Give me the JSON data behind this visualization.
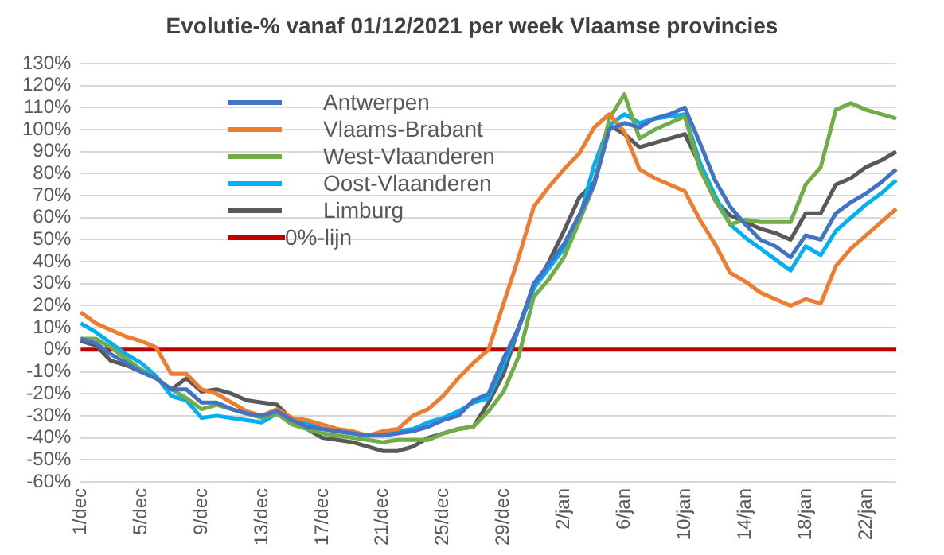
{
  "chart_data": {
    "type": "line",
    "title": "Evolutie-% vanaf 01/12/2021 per week Vlaamse provincies",
    "categories": [
      "1/dec",
      null,
      null,
      null,
      "5/dec",
      null,
      null,
      null,
      "9/dec",
      null,
      null,
      null,
      "13/dec",
      null,
      null,
      null,
      "17/dec",
      null,
      null,
      null,
      "21/dec",
      null,
      null,
      null,
      "25/dec",
      null,
      null,
      null,
      "29/dec",
      null,
      null,
      null,
      "2/jan",
      null,
      null,
      null,
      "6/jan",
      null,
      null,
      null,
      "10/jan",
      null,
      null,
      null,
      "14/jan",
      null,
      null,
      null,
      "18/jan",
      null,
      null,
      null,
      "22/jan",
      null,
      null
    ],
    "series": [
      {
        "name": "Antwerpen",
        "color": "#4472c4",
        "values": [
          5,
          3,
          -2,
          -6,
          -10,
          -13,
          -18,
          -18,
          -24,
          -24,
          -27,
          -29,
          -30,
          -28,
          -32,
          -35,
          -36,
          -37,
          -38,
          -39,
          -39,
          -38,
          -37,
          -35,
          -32,
          -30,
          -23,
          -20,
          -4,
          10,
          30,
          39,
          48,
          61,
          75,
          100,
          103,
          101,
          105,
          107,
          110,
          94,
          77,
          65,
          57,
          50,
          47,
          42,
          52,
          50,
          62,
          67,
          71,
          76,
          82
        ]
      },
      {
        "name": "Vlaams-Brabant",
        "color": "#ed7d31",
        "values": [
          17,
          12,
          9,
          6,
          4,
          1,
          -11,
          -11,
          -18,
          -20,
          -24,
          -28,
          -30,
          -27,
          -31,
          -32,
          -34,
          -36,
          -37,
          -39,
          -37,
          -36,
          -30,
          -27,
          -21,
          -13,
          -6,
          0,
          21,
          42,
          65,
          74,
          82,
          89,
          101,
          107,
          99,
          82,
          78,
          75,
          72,
          59,
          48,
          35,
          31,
          26,
          23,
          20,
          23,
          21,
          38,
          46,
          52,
          58,
          64
        ]
      },
      {
        "name": "West-Vlaanderen",
        "color": "#70ad47",
        "values": [
          5,
          5,
          1,
          -4,
          -9,
          -13,
          -18,
          -22,
          -27,
          -25,
          -27,
          -29,
          -31,
          -29,
          -34,
          -36,
          -38,
          -39,
          -40,
          -41,
          -42,
          -41,
          -41,
          -41,
          -38,
          -36,
          -35,
          -28,
          -19,
          -3,
          24,
          32,
          42,
          58,
          75,
          105,
          116,
          96,
          100,
          103,
          106,
          82,
          68,
          57,
          59,
          58,
          58,
          58,
          75,
          83,
          109,
          112,
          109,
          107,
          105
        ]
      },
      {
        "name": "Oost-Vlaanderen",
        "color": "#00b0f0",
        "values": [
          12,
          8,
          3,
          -2,
          -6,
          -12,
          -21,
          -23,
          -31,
          -30,
          -31,
          -32,
          -33,
          -29,
          -33,
          -33,
          -36,
          -37,
          -38,
          -39,
          -38,
          -37,
          -36,
          -33,
          -31,
          -28,
          -24,
          -22,
          -7,
          10,
          28,
          37,
          46,
          59,
          84,
          102,
          107,
          103,
          105,
          106,
          107,
          85,
          70,
          57,
          51,
          46,
          41,
          36,
          47,
          43,
          54,
          60,
          66,
          71,
          77
        ]
      },
      {
        "name": "Limburg",
        "color": "#595959",
        "values": [
          4,
          2,
          -5,
          -7,
          -10,
          -13,
          -18,
          -13,
          -19,
          -18,
          -20,
          -23,
          -24,
          -25,
          -32,
          -36,
          -40,
          -41,
          -42,
          -44,
          -46,
          -46,
          -44,
          -40,
          -38,
          -36,
          -35,
          -24,
          -11,
          10,
          28,
          40,
          54,
          69,
          76,
          102,
          98,
          92,
          94,
          96,
          98,
          84,
          68,
          61,
          58,
          55,
          53,
          50,
          62,
          62,
          75,
          78,
          83,
          86,
          90
        ]
      },
      {
        "name": "0%-lijn",
        "color": "#c00000",
        "values": [
          0,
          0,
          0,
          0,
          0,
          0,
          0,
          0,
          0,
          0,
          0,
          0,
          0,
          0,
          0,
          0,
          0,
          0,
          0,
          0,
          0,
          0,
          0,
          0,
          0,
          0,
          0,
          0,
          0,
          0,
          0,
          0,
          0,
          0,
          0,
          0,
          0,
          0,
          0,
          0,
          0,
          0,
          0,
          0,
          0,
          0,
          0,
          0,
          0,
          0,
          0,
          0,
          0,
          0,
          0
        ]
      }
    ],
    "ylim": [
      -60,
      130
    ],
    "yticks": [
      {
        "value": -60,
        "label": "-60%"
      },
      {
        "value": -50,
        "label": "-50%"
      },
      {
        "value": -40,
        "label": "-40%"
      },
      {
        "value": -30,
        "label": "-30%"
      },
      {
        "value": -20,
        "label": "-20%"
      },
      {
        "value": -10,
        "label": "-10%"
      },
      {
        "value": 0,
        "label": "0%"
      },
      {
        "value": 10,
        "label": "10%"
      },
      {
        "value": 20,
        "label": "20%"
      },
      {
        "value": 30,
        "label": "30%"
      },
      {
        "value": 40,
        "label": "40%"
      },
      {
        "value": 50,
        "label": "50%"
      },
      {
        "value": 60,
        "label": "60%"
      },
      {
        "value": 70,
        "label": "70%"
      },
      {
        "value": 80,
        "label": "80%"
      },
      {
        "value": 90,
        "label": "90%"
      },
      {
        "value": 100,
        "label": "100%"
      },
      {
        "value": 110,
        "label": "110%"
      },
      {
        "value": 120,
        "label": "120%"
      },
      {
        "value": 130,
        "label": "130%"
      }
    ],
    "grid": "y",
    "legend": "top left",
    "marker": "none",
    "line_style": "solid"
  }
}
